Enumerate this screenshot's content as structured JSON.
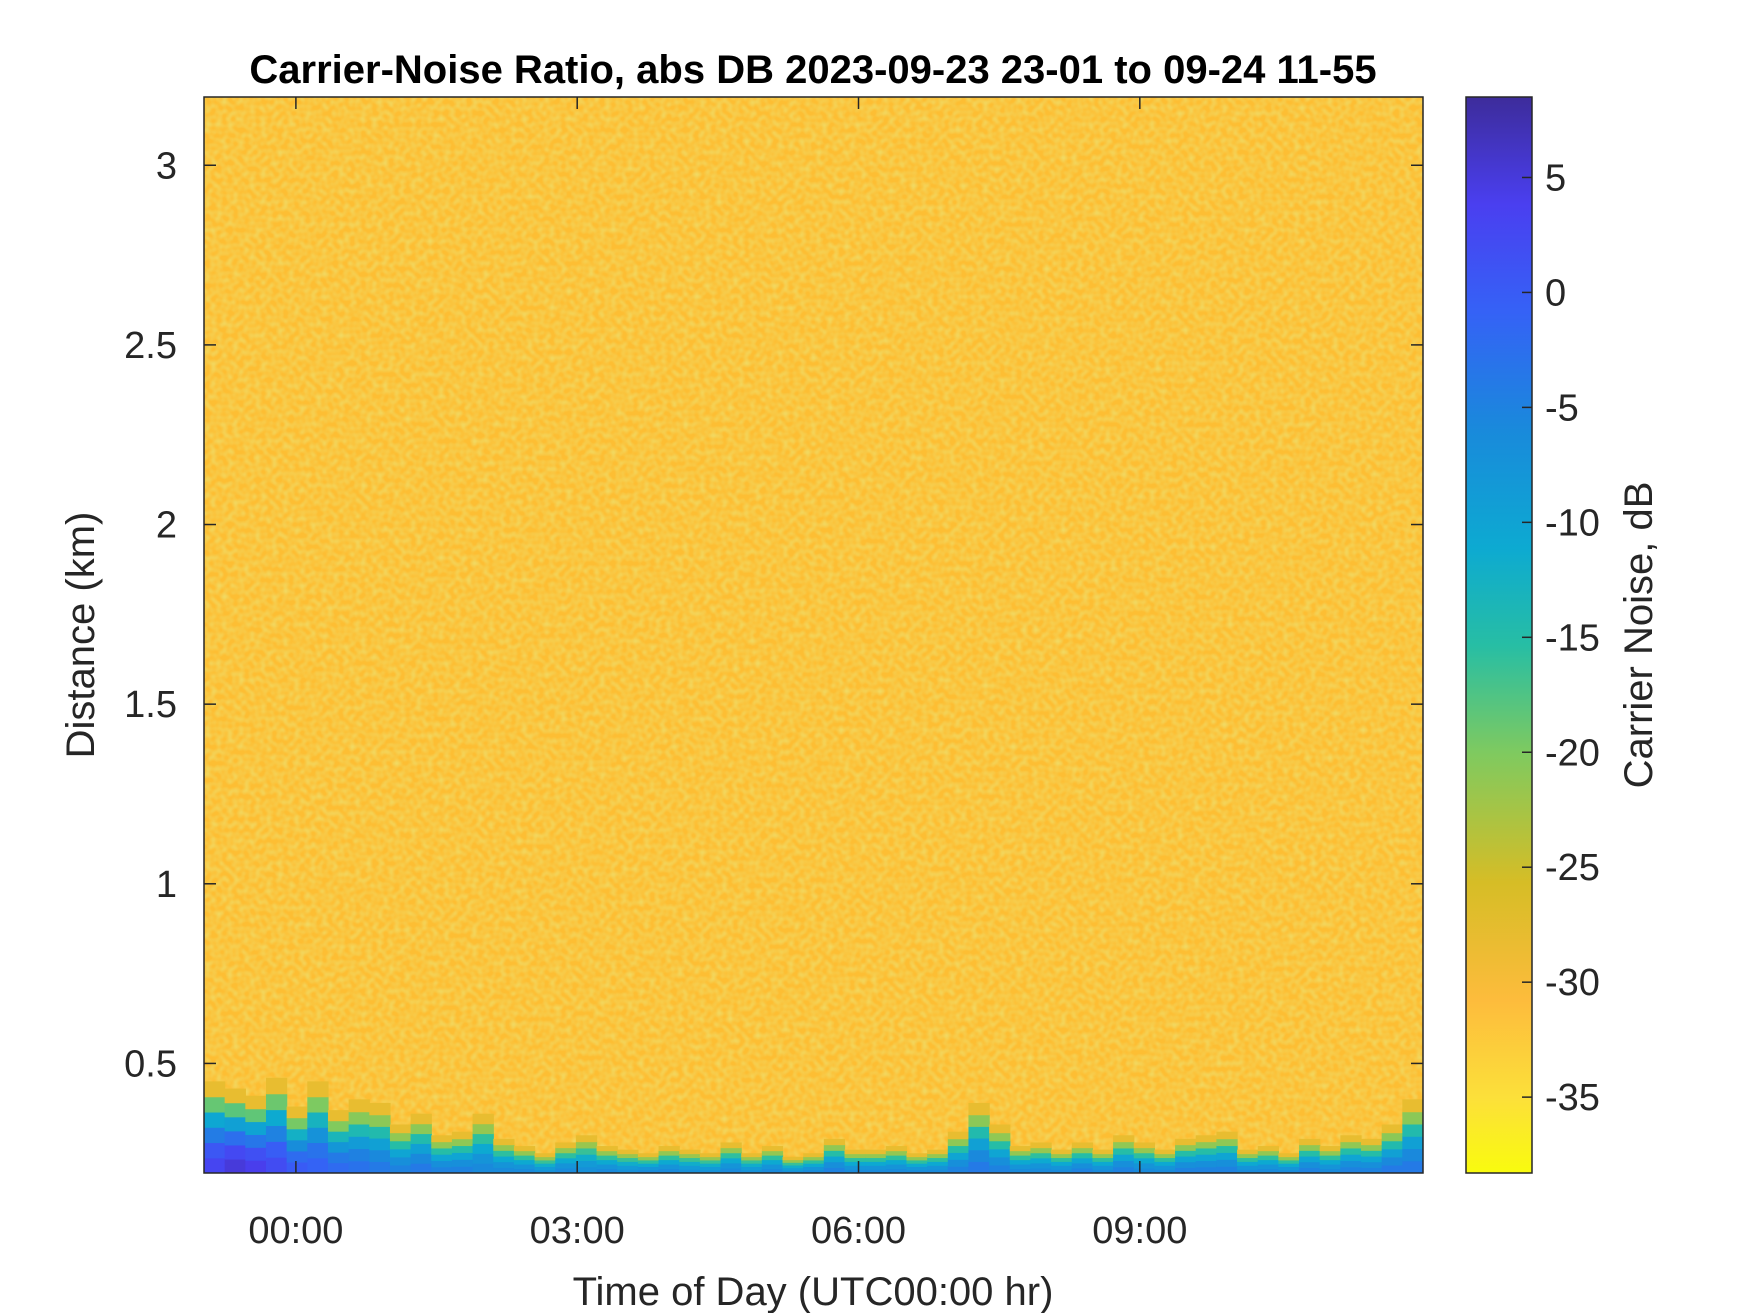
{
  "chart_data": {
    "type": "heatmap",
    "title": "Carrier-Noise Ratio, abs DB 2023-09-23 23-01 to 09-24 11-55",
    "xlabel": "Time of Day (UTC00:00 hr)",
    "ylabel": "Distance (km)",
    "colorbar_label": "Carrier Noise, dB",
    "colormap": "parula (reversed)",
    "x_ticks": [
      {
        "label": "00:00",
        "value": 0
      },
      {
        "label": "03:00",
        "value": 3
      },
      {
        "label": "06:00",
        "value": 6
      },
      {
        "label": "09:00",
        "value": 9
      }
    ],
    "y_ticks": [
      {
        "label": "0.5",
        "value": 0.5
      },
      {
        "label": "1",
        "value": 1
      },
      {
        "label": "1.5",
        "value": 1.5
      },
      {
        "label": "2",
        "value": 2
      },
      {
        "label": "2.5",
        "value": 2.5
      },
      {
        "label": "3",
        "value": 3
      }
    ],
    "colorbar_ticks": [
      {
        "label": "5",
        "value": 5
      },
      {
        "label": "0",
        "value": 0
      },
      {
        "label": "-5",
        "value": -5
      },
      {
        "label": "-10",
        "value": -10
      },
      {
        "label": "-15",
        "value": -15
      },
      {
        "label": "-20",
        "value": -20
      },
      {
        "label": "-25",
        "value": -25
      },
      {
        "label": "-30",
        "value": -30
      },
      {
        "label": "-35",
        "value": -35
      }
    ],
    "xlim": [
      -0.98,
      12.02
    ],
    "ylim": [
      0.195,
      3.19
    ],
    "clim": [
      -38.3,
      8.5
    ],
    "background_level_db": -32,
    "near_range_signal": {
      "distance_km_upper": [
        0.45,
        0.43,
        0.41,
        0.46,
        0.38,
        0.45,
        0.37,
        0.4,
        0.39,
        0.33,
        0.36,
        0.3,
        0.31,
        0.36,
        0.29,
        0.27,
        0.25,
        0.28,
        0.3,
        0.27,
        0.26,
        0.25,
        0.27,
        0.26,
        0.25,
        0.28,
        0.25,
        0.27,
        0.24,
        0.25,
        0.29,
        0.26,
        0.26,
        0.27,
        0.25,
        0.26,
        0.31,
        0.39,
        0.33,
        0.27,
        0.28,
        0.26,
        0.28,
        0.26,
        0.3,
        0.28,
        0.26,
        0.29,
        0.3,
        0.31,
        0.26,
        0.27,
        0.25,
        0.29,
        0.27,
        0.3,
        0.29,
        0.33,
        0.4
      ],
      "peak_db": [
        3,
        5,
        4,
        2,
        0,
        -1,
        -2,
        -3,
        -4,
        -5,
        -4,
        -5,
        -5,
        -6,
        -6,
        -6,
        -7,
        -6,
        -7,
        -6,
        -7,
        -6,
        -6,
        -7,
        -7,
        -6,
        -7,
        -6,
        -7,
        -6,
        -5,
        -6,
        -6,
        -6,
        -6,
        -6,
        -5,
        -4,
        -5,
        -6,
        -6,
        -6,
        -5,
        -6,
        -5,
        -6,
        -6,
        -5,
        -5,
        -5,
        -6,
        -6,
        -6,
        -5,
        -6,
        -5,
        -5,
        -4,
        -4
      ]
    }
  }
}
